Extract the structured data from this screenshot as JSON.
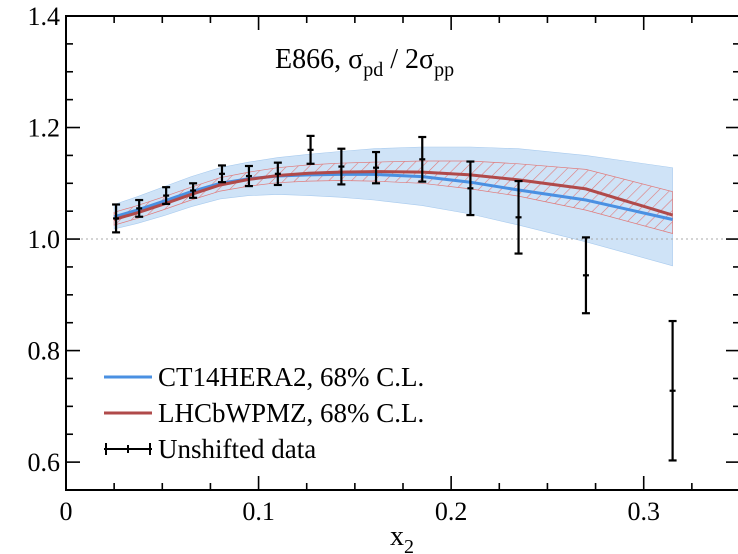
{
  "chart_data": {
    "type": "line",
    "title": "E866, σ<sub>pd</sub> / 2σ<sub>pp</sub>",
    "title_main": "E866, σ",
    "title_sub1": "pd",
    "title_mid": " / 2σ",
    "title_sub2": "pp",
    "xlabel_main": "x",
    "xlabel_sub": "2",
    "ylabel": "",
    "xlim": [
      0,
      0.35
    ],
    "ylim": [
      0.55,
      1.4
    ],
    "x_ticks": [
      0,
      0.1,
      0.2,
      0.3
    ],
    "x_tick_labels": [
      "0",
      "0.1",
      "0.2",
      "0.3"
    ],
    "y_ticks": [
      0.6,
      0.8,
      1.0,
      1.2,
      1.4
    ],
    "y_tick_labels": [
      "0.6",
      "0.8",
      "1.0",
      "1.2",
      "1.4"
    ],
    "reference_line": 1.0,
    "grid": false,
    "legend_position": "bottom-left",
    "colors": {
      "ct14": "#4a90e2",
      "ct14_band": "#cfe3f7",
      "lhcb": "#b04a4a",
      "lhcb_hatch": "#e07a7a",
      "data": "#000000"
    },
    "series": [
      {
        "name": "CT14HERA2, 68% C.L.",
        "x": [
          0.025,
          0.037,
          0.051,
          0.065,
          0.08,
          0.095,
          0.11,
          0.126,
          0.142,
          0.16,
          0.185,
          0.21,
          0.235,
          0.27,
          0.315
        ],
        "values": [
          1.04,
          1.052,
          1.068,
          1.085,
          1.1,
          1.108,
          1.113,
          1.115,
          1.116,
          1.116,
          1.112,
          1.102,
          1.088,
          1.07,
          1.035
        ],
        "band_lower": [
          1.018,
          1.028,
          1.042,
          1.058,
          1.072,
          1.078,
          1.08,
          1.078,
          1.075,
          1.07,
          1.06,
          1.045,
          1.025,
          0.995,
          0.952
        ],
        "band_upper": [
          1.062,
          1.076,
          1.094,
          1.112,
          1.128,
          1.138,
          1.146,
          1.152,
          1.157,
          1.162,
          1.165,
          1.165,
          1.162,
          1.15,
          1.128
        ]
      },
      {
        "name": "LHCbWPMZ, 68% C.L.",
        "x": [
          0.025,
          0.037,
          0.051,
          0.065,
          0.08,
          0.095,
          0.11,
          0.126,
          0.142,
          0.16,
          0.185,
          0.21,
          0.235,
          0.27,
          0.315
        ],
        "values": [
          1.035,
          1.047,
          1.063,
          1.08,
          1.097,
          1.107,
          1.114,
          1.118,
          1.12,
          1.121,
          1.12,
          1.115,
          1.106,
          1.09,
          1.043
        ],
        "band_lower": [
          1.025,
          1.037,
          1.053,
          1.07,
          1.086,
          1.095,
          1.101,
          1.104,
          1.105,
          1.104,
          1.1,
          1.09,
          1.077,
          1.052,
          1.01
        ],
        "band_upper": [
          1.048,
          1.06,
          1.076,
          1.093,
          1.11,
          1.12,
          1.128,
          1.133,
          1.136,
          1.138,
          1.14,
          1.14,
          1.135,
          1.125,
          1.085
        ]
      },
      {
        "name": "Unshifted data",
        "x": [
          0.026,
          0.038,
          0.052,
          0.066,
          0.081,
          0.095,
          0.11,
          0.127,
          0.143,
          0.161,
          0.185,
          0.21,
          0.235,
          0.27,
          0.315
        ],
        "values": [
          1.037,
          1.055,
          1.078,
          1.087,
          1.117,
          1.113,
          1.117,
          1.16,
          1.13,
          1.128,
          1.143,
          1.091,
          1.039,
          0.935,
          0.728
        ],
        "errors": [
          0.025,
          0.015,
          0.015,
          0.013,
          0.015,
          0.018,
          0.02,
          0.025,
          0.032,
          0.028,
          0.04,
          0.048,
          0.065,
          0.068,
          0.125
        ]
      }
    ],
    "legend": [
      {
        "label": "CT14HERA2, 68% C.L.",
        "style": "line",
        "color": "#4a90e2"
      },
      {
        "label": "LHCbWPMZ, 68% C.L.",
        "style": "line",
        "color": "#b04a4a"
      },
      {
        "label": "Unshifted data",
        "style": "errorbar",
        "color": "#000000"
      }
    ]
  }
}
